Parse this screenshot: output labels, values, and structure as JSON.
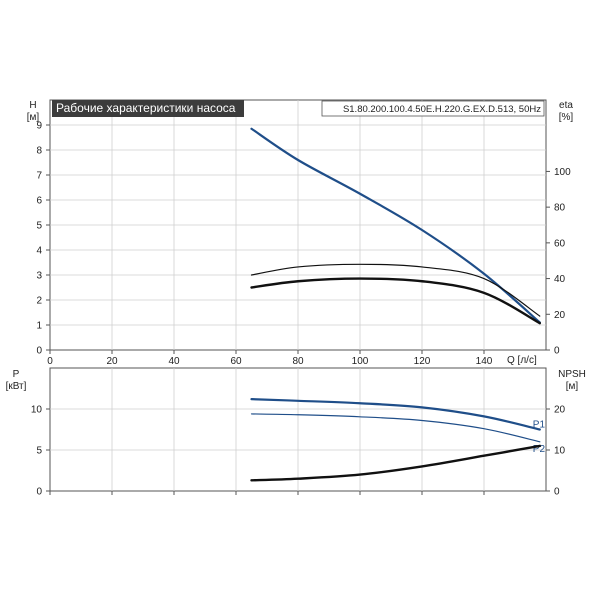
{
  "chart_data": [
    {
      "type": "line",
      "title": "Рабочие характеристики насоса",
      "subtitle": "S1.80.200.100.4.50E.H.220.G.EX.D.513, 50Hz",
      "xlabel": "Q [л/с]",
      "ylabel_unit": "[м]",
      "ylabel": "H",
      "y2label": "eta",
      "y2label_unit": "[%]",
      "xlim": [
        0,
        160
      ],
      "ylim": [
        0,
        10
      ],
      "y2lim": [
        0,
        140
      ],
      "x_ticks": [
        0,
        20,
        40,
        60,
        80,
        100,
        120,
        140
      ],
      "y_ticks": [
        0,
        1,
        2,
        3,
        4,
        5,
        6,
        7,
        8,
        9
      ],
      "y2_ticks": [
        0,
        20,
        40,
        60,
        80,
        100
      ],
      "grid": true,
      "series": [
        {
          "color": "#1f4e89",
          "axis": "y",
          "x": [
            65,
            80,
            100,
            120,
            140,
            158
          ],
          "values": [
            8.85,
            7.6,
            6.25,
            4.8,
            3.05,
            1.1
          ]
        },
        {
          "color": "#111111",
          "axis": "y2",
          "x": [
            65,
            80,
            100,
            120,
            140,
            158
          ],
          "values": [
            42,
            46.5,
            48,
            46.5,
            40,
            19
          ]
        },
        {
          "color": "#111111",
          "axis": "y2",
          "x": [
            65,
            80,
            100,
            120,
            140,
            158
          ],
          "values": [
            35,
            38.5,
            40,
            38.5,
            32,
            15
          ]
        }
      ]
    },
    {
      "type": "line",
      "ylabel": "P",
      "ylabel_unit": "[кВт]",
      "y2label": "NPSH",
      "y2label_unit": "[м]",
      "xlim": [
        0,
        160
      ],
      "ylim": [
        0,
        15
      ],
      "y2lim": [
        0,
        30
      ],
      "x_ticks": [
        0,
        20,
        40,
        60,
        80,
        100,
        120,
        140
      ],
      "y_ticks": [
        0,
        5,
        10
      ],
      "y2_ticks": [
        0,
        10,
        20
      ],
      "grid": true,
      "series": [
        {
          "name": "P1",
          "color": "#1f4e89",
          "axis": "y",
          "x": [
            65,
            80,
            100,
            120,
            140,
            158
          ],
          "values": [
            11.2,
            11.0,
            10.7,
            10.2,
            9.1,
            7.5
          ]
        },
        {
          "name": "P2",
          "color": "#1f4e89",
          "axis": "y",
          "x": [
            65,
            80,
            100,
            120,
            140,
            158
          ],
          "values": [
            9.4,
            9.3,
            9.05,
            8.6,
            7.6,
            6.0
          ]
        },
        {
          "color": "#111111",
          "axis": "y2",
          "x": [
            65,
            80,
            100,
            120,
            140,
            158
          ],
          "values": [
            2.6,
            3.0,
            4.0,
            6.0,
            8.6,
            11.0
          ]
        }
      ]
    }
  ]
}
